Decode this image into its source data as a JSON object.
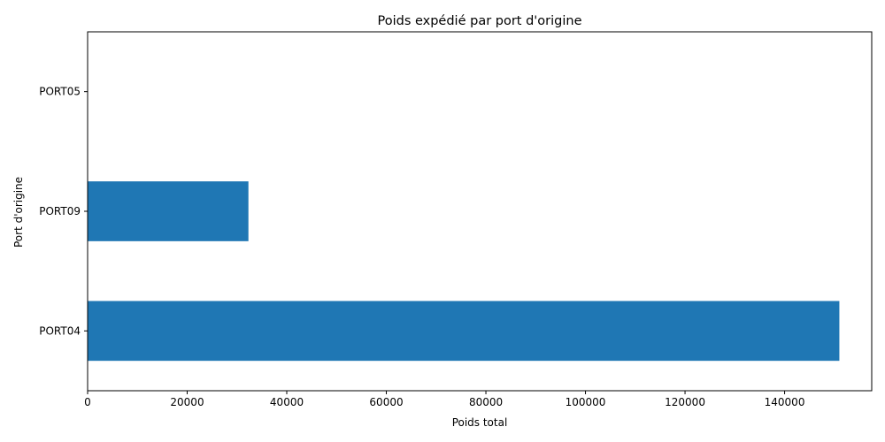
{
  "chart_data": {
    "type": "bar",
    "orientation": "horizontal",
    "title": "Poids expédié par port d'origine",
    "xlabel": "Poids total",
    "ylabel": "Port d'origine",
    "categories": [
      "PORT04",
      "PORT09",
      "PORT05"
    ],
    "values": [
      151000,
      32300,
      0
    ],
    "xlim": [
      0,
      157500
    ],
    "xticks": [
      0,
      20000,
      40000,
      60000,
      80000,
      100000,
      120000,
      140000
    ],
    "xtick_labels": [
      "0",
      "20000",
      "40000",
      "60000",
      "80000",
      "100000",
      "120000",
      "140000"
    ],
    "grid": false,
    "legend": "none",
    "bar_color": "#1f77b4"
  }
}
